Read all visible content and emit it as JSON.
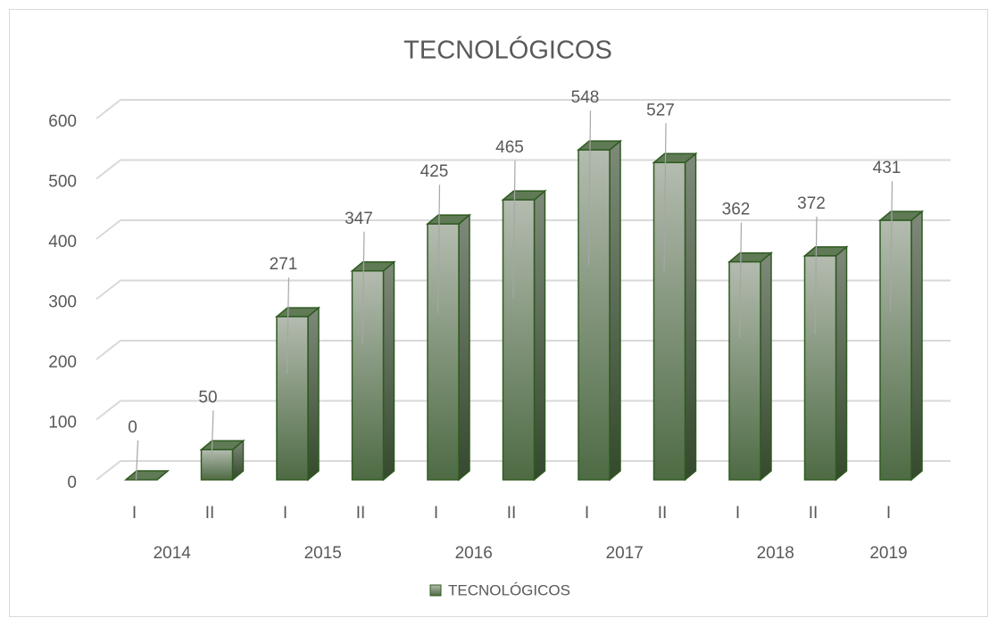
{
  "chart_data": {
    "type": "bar",
    "title": "TECNOLÓGICOS",
    "categories": [
      "I",
      "II",
      "I",
      "II",
      "I",
      "II",
      "I",
      "II",
      "I",
      "II",
      "I"
    ],
    "groups": [
      {
        "label": "2014",
        "size": 2
      },
      {
        "label": "2015",
        "size": 2
      },
      {
        "label": "2016",
        "size": 2
      },
      {
        "label": "2017",
        "size": 2
      },
      {
        "label": "2018",
        "size": 2
      },
      {
        "label": "2019",
        "size": 1
      }
    ],
    "series": [
      {
        "name": "TECNOLÓGICOS",
        "color": "#5f7a55",
        "values": [
          0,
          50,
          271,
          347,
          425,
          465,
          548,
          527,
          362,
          372,
          431
        ]
      }
    ],
    "ylim": [
      0,
      600
    ],
    "yticks": [
      0,
      100,
      200,
      300,
      400,
      500,
      600
    ],
    "grid": true,
    "legend": "bottom"
  }
}
